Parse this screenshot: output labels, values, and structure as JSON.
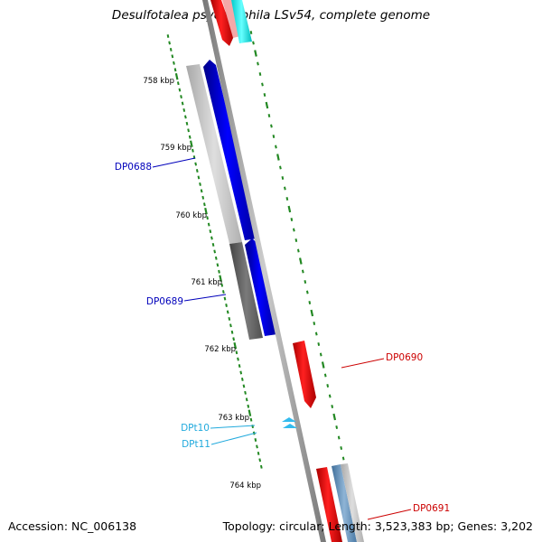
{
  "header": {
    "title": "Desulfotalea psychrophila LSv54, complete genome"
  },
  "footer": {
    "accession": "Accession: NC_006138",
    "topology": "Topology: circular; Length: 3,523,383 bp; Genes: 3,202"
  },
  "ruler": {
    "ticks": [
      {
        "label": "758 kbp"
      },
      {
        "label": "759 kbp"
      },
      {
        "label": "760 kbp"
      },
      {
        "label": "761 kbp"
      },
      {
        "label": "762 kbp"
      },
      {
        "label": "763 kbp"
      },
      {
        "label": "764 kbp"
      }
    ]
  },
  "genes": [
    {
      "label": "DP0688",
      "color": "#0000bb"
    },
    {
      "label": "DP0689",
      "color": "#0000bb"
    },
    {
      "label": "DP0690",
      "color": "#cc0000"
    },
    {
      "label": "DP0691",
      "color": "#cc0000"
    },
    {
      "label": "DPt10",
      "color": "#22aadd"
    },
    {
      "label": "DPt11",
      "color": "#22aadd"
    }
  ],
  "colors": {
    "forward_cds": "#0000ff",
    "reverse_cds": "#ff0000",
    "trna": "#22bbee",
    "cyan_feature": "#00ffff",
    "gc_skew_light": "#c8c8c8",
    "gc_skew_dark": "#666666",
    "backbone": "#888888",
    "tick_green": "#228822"
  }
}
